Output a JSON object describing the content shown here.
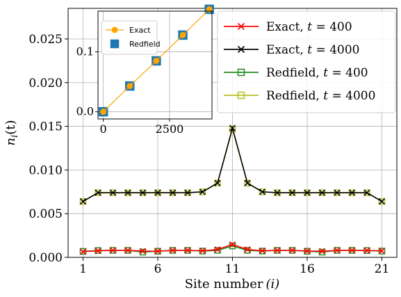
{
  "chart_data": [
    {
      "type": "line",
      "xlabel": "Site number",
      "xlabel_var": "(i)",
      "ylabel": "n",
      "ylabel_sub": "i",
      "ylabel_tail": "(t)",
      "xlim": [
        0,
        22
      ],
      "ylim": [
        0,
        0.0285
      ],
      "grid": true,
      "legend_position": "top-right",
      "x_ticks": [
        1,
        6,
        11,
        16,
        21
      ],
      "x_tick_labels": [
        "1",
        "6",
        "11",
        "16",
        "21"
      ],
      "y_ticks": [
        0.0,
        0.005,
        0.01,
        0.015,
        0.02,
        0.025
      ],
      "y_tick_labels": [
        "0.000",
        "0.005",
        "0.010",
        "0.015",
        "0.020",
        "0.025"
      ],
      "x": [
        1,
        2,
        3,
        4,
        5,
        6,
        7,
        8,
        9,
        10,
        11,
        12,
        13,
        14,
        15,
        16,
        17,
        18,
        19,
        20,
        21
      ],
      "series": [
        {
          "name": "Exact, t = 400",
          "name_prefix": "Exact, ",
          "name_var": "t",
          "name_value": " = 400",
          "color": "#ff0000",
          "marker": "x",
          "values": [
            0.00065,
            0.00075,
            0.0008,
            0.0008,
            0.00072,
            0.0007,
            0.0008,
            0.0008,
            0.00075,
            0.0009,
            0.00148,
            0.0009,
            0.00075,
            0.0008,
            0.0008,
            0.00072,
            0.0007,
            0.0008,
            0.0008,
            0.00078,
            0.00075
          ]
        },
        {
          "name": "Exact, t = 4000",
          "name_prefix": "Exact, ",
          "name_var": "t",
          "name_value": " = 4000",
          "color": "#000000",
          "marker": "x",
          "values": [
            0.0064,
            0.0074,
            0.0074,
            0.0074,
            0.0074,
            0.0074,
            0.0074,
            0.0074,
            0.0075,
            0.0085,
            0.0148,
            0.0085,
            0.0075,
            0.0074,
            0.0074,
            0.0074,
            0.0074,
            0.0074,
            0.0074,
            0.0074,
            0.0064
          ]
        },
        {
          "name": "Redfield, t = 400",
          "name_prefix": "Redfield, ",
          "name_var": "t",
          "name_value": " = 400",
          "color": "#228b22",
          "marker": "square",
          "values": [
            0.00068,
            0.00078,
            0.0008,
            0.0008,
            0.0006,
            0.0007,
            0.0008,
            0.0008,
            0.00072,
            0.0008,
            0.0013,
            0.0008,
            0.00072,
            0.0008,
            0.0008,
            0.0007,
            0.0006,
            0.0008,
            0.0008,
            0.00078,
            0.00072
          ]
        },
        {
          "name": "Redfield, t = 4000",
          "name_prefix": "Redfield, ",
          "name_var": "t",
          "name_value": " = 4000",
          "color": "#bcbd22",
          "marker": "square",
          "values": [
            0.0064,
            0.0074,
            0.0074,
            0.0074,
            0.0074,
            0.0074,
            0.0074,
            0.0074,
            0.0075,
            0.0085,
            0.0147,
            0.0085,
            0.0075,
            0.0074,
            0.0074,
            0.0074,
            0.0074,
            0.0074,
            0.0074,
            0.0074,
            0.0064
          ]
        }
      ]
    },
    {
      "type": "line",
      "xlim": [
        -200,
        4100
      ],
      "ylim": [
        -0.012,
        0.168
      ],
      "grid": true,
      "legend_position": "top-left",
      "x_ticks": [
        0,
        2500
      ],
      "x_tick_labels": [
        "0",
        "2500"
      ],
      "y_ticks": [
        0.0,
        0.1
      ],
      "y_tick_labels": [
        "0.0",
        "0.1"
      ],
      "x": [
        0,
        1000,
        2000,
        3000,
        4000
      ],
      "series": [
        {
          "name": "Exact",
          "color": "#ffa500",
          "marker": "circle",
          "values": [
            0.0,
            0.043,
            0.085,
            0.128,
            0.171
          ]
        },
        {
          "name": "Redfield",
          "color": "#1f77b4",
          "marker": "square",
          "values": [
            0.0,
            0.043,
            0.085,
            0.128,
            0.171
          ]
        }
      ]
    }
  ]
}
